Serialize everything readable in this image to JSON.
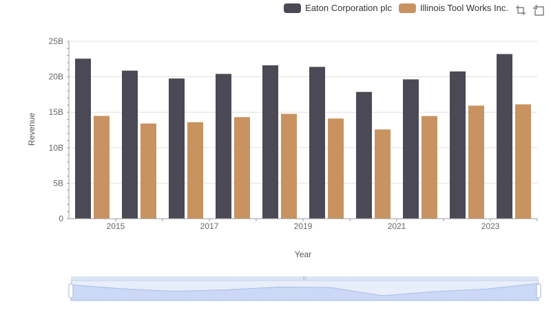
{
  "colors": {
    "eaton": "#4a4955",
    "itw": "#c89360"
  },
  "legend": [
    {
      "label": "Eaton Corporation plc",
      "color": "#4a4955"
    },
    {
      "label": "Illinois Tool Works Inc.",
      "color": "#c89360"
    }
  ],
  "toolbox": {
    "icons": [
      "zoom-icon",
      "restore-icon"
    ]
  },
  "chart_data": {
    "type": "bar",
    "xlabel": "Year",
    "ylabel": "Revenue",
    "ylim": [
      0,
      25000000000
    ],
    "yticks": [
      "0",
      "5B",
      "10B",
      "15B",
      "20B",
      "25B"
    ],
    "xticks": [
      "2015",
      "2017",
      "2019",
      "2021",
      "2023"
    ],
    "categories": [
      "2014",
      "2015",
      "2016",
      "2017",
      "2018",
      "2019",
      "2020",
      "2021",
      "2022",
      "2023"
    ],
    "series": [
      {
        "name": "Eaton Corporation plc",
        "values": [
          22550000000,
          20860000000,
          19750000000,
          20400000000,
          21610000000,
          21390000000,
          17860000000,
          19630000000,
          20750000000,
          23200000000
        ]
      },
      {
        "name": "Illinois Tool Works Inc.",
        "values": [
          14480000000,
          13410000000,
          13600000000,
          14310000000,
          14770000000,
          14110000000,
          12570000000,
          14460000000,
          15930000000,
          16110000000
        ]
      }
    ],
    "grid": true,
    "legend_position": "top-right",
    "data_zoom": true
  }
}
